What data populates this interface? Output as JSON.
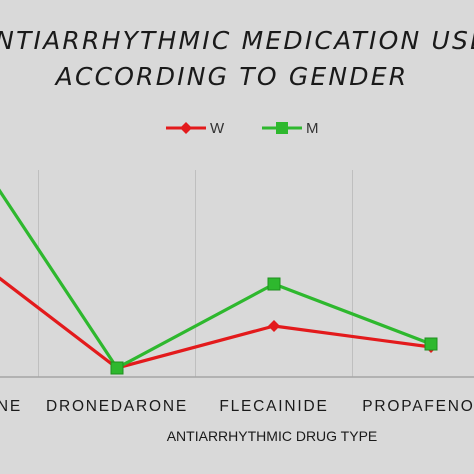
{
  "chart_data": {
    "type": "line",
    "title_lines": [
      "ANTIARRHYTHMIC MEDICATION USE",
      "ACCORDING TO GENDER"
    ],
    "xlabel": "ANTIARRHYTHMIC DRUG TYPE",
    "ylabel": "",
    "categories": [
      "AMIODARONE",
      "DRONEDARONE",
      "FLECAINIDE",
      "PROPAFENONE"
    ],
    "series": [
      {
        "name": "W",
        "color": "#e31a1c",
        "marker": "diamond",
        "values": [
          43,
          3,
          17,
          10
        ]
      },
      {
        "name": "M",
        "color": "#2eb82e",
        "marker": "square",
        "values": [
          82,
          3,
          31,
          11
        ]
      }
    ],
    "legend_position": "top",
    "grid": {
      "vertical": true,
      "horizontal": false
    }
  }
}
